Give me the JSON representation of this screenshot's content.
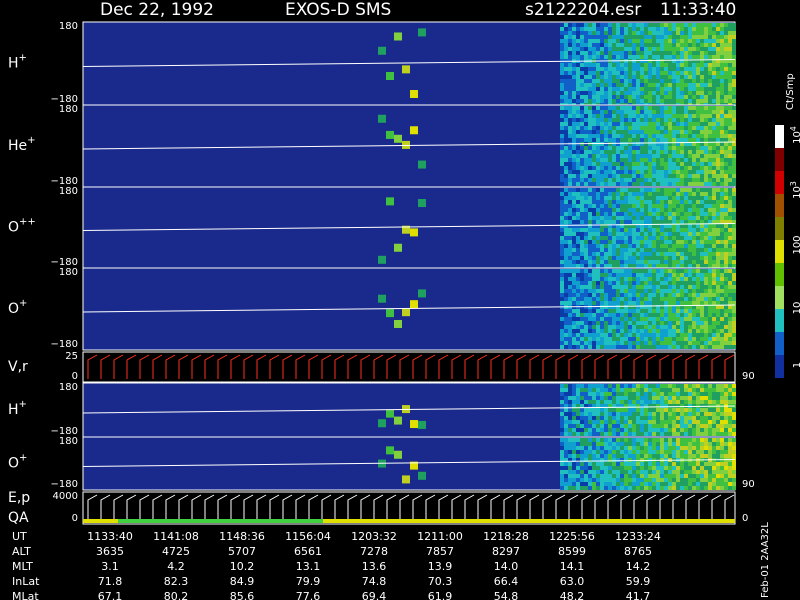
{
  "header": {
    "date": "Dec 22, 1992",
    "instrument": "EXOS-D SMS",
    "file": "s2122204.esr",
    "time": "11:33:40"
  },
  "panels": [
    {
      "label": "H",
      "sup": "+",
      "top": "180",
      "bottom": "−180"
    },
    {
      "label": "He",
      "sup": "+",
      "top": "180",
      "bottom": "−180"
    },
    {
      "label": "O",
      "sup": "++",
      "top": "180",
      "bottom": "−180"
    },
    {
      "label": "O",
      "sup": "+",
      "top": "180",
      "bottom": "−180"
    },
    {
      "label": "V,r",
      "top": "25",
      "bottom": "0",
      "right": "90"
    },
    {
      "label": "H",
      "sup": "+",
      "top": "180",
      "bottom": "−180"
    },
    {
      "label": "O",
      "sup": "+",
      "top": "180",
      "bottom": "−180",
      "right": "90"
    },
    {
      "label": "E,p",
      "label2": "QA",
      "top": "4000",
      "bottom": "0",
      "right": "0"
    }
  ],
  "colorbar": {
    "unit": "Ct/Smp",
    "labels": [
      {
        "text": "10",
        "sup": "4"
      },
      {
        "text": "10",
        "sup": "3"
      },
      {
        "text": "100"
      },
      {
        "text": "10"
      },
      {
        "text": "1"
      }
    ]
  },
  "table": {
    "rows": [
      [
        "UT",
        "1133:40",
        "1141:08",
        "1148:36",
        "1156:04",
        "1203:32",
        "1211:00",
        "1218:28",
        "1225:56",
        "1233:24"
      ],
      [
        "ALT",
        "3635",
        "4725",
        "5707",
        "6561",
        "7278",
        "7857",
        "8297",
        "8599",
        "8765"
      ],
      [
        "MLT",
        "3.1",
        "4.2",
        "10.2",
        "13.1",
        "13.6",
        "13.9",
        "14.0",
        "14.1",
        "14.2"
      ],
      [
        "InLat",
        "71.8",
        "82.3",
        "84.9",
        "79.9",
        "74.8",
        "70.3",
        "66.4",
        "63.0",
        "59.9"
      ],
      [
        "MLat",
        "67.1",
        "80.2",
        "85.6",
        "77.6",
        "69.4",
        "61.9",
        "54.8",
        "48.2",
        "41.7"
      ]
    ]
  },
  "side_note": "Feb-01 2AA32L"
}
